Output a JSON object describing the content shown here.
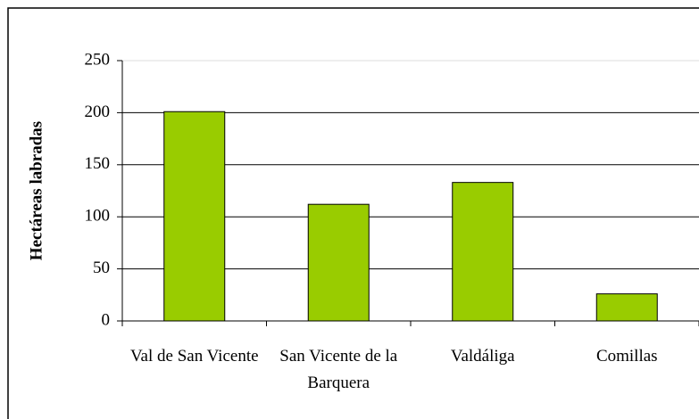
{
  "chart_data": {
    "type": "bar",
    "y_label": "Hectáreas labradas",
    "categories": [
      "Val de San Vicente",
      "San Vicente de la Barquera",
      "Valdáliga",
      "Comillas"
    ],
    "values": [
      201,
      112,
      133,
      26
    ],
    "color": "#99cc00",
    "ylim": [
      0,
      250
    ],
    "yticks": [
      0,
      50,
      100,
      150,
      200,
      250
    ],
    "grid": true
  }
}
